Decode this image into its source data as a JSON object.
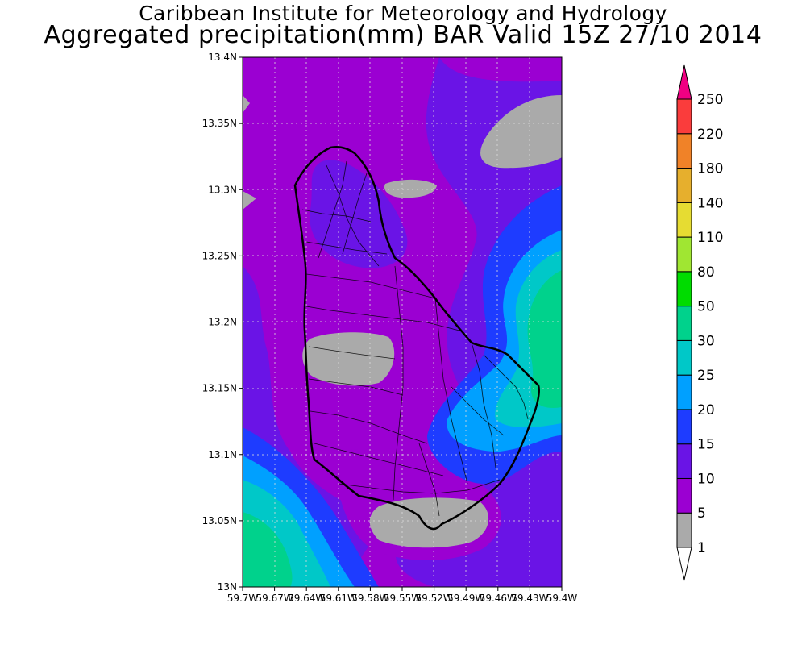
{
  "header": {
    "institute": "Caribbean Institute for Meteorology and Hydrology",
    "product": "Aggregated precipitation(mm) BAR Valid 15Z 27/10 2014"
  },
  "map": {
    "region": "Barbados",
    "lat_range": [
      13.0,
      13.4
    ],
    "lon_range": [
      -59.7,
      -59.4
    ],
    "y_ticks": [
      "13.4N",
      "13.35N",
      "13.3N",
      "13.25N",
      "13.2N",
      "13.15N",
      "13.1N",
      "13.05N",
      "13N"
    ],
    "x_ticks": [
      "59.7W",
      "59.67W",
      "59.64W",
      "59.61W",
      "59.58W",
      "59.55W",
      "59.52W",
      "59.49W",
      "59.46W",
      "59.43W",
      "59.4W"
    ],
    "gridlines": "dotted",
    "colors": {
      "1-5": "#aaaaaa",
      "5-10": "#9b00d2",
      "10-15": "#6a14e6",
      "15-20": "#1e3cff",
      "20-25": "#00a0ff",
      "25-30": "#00c8c8",
      "30-50": "#00d28c",
      "50-80": "#00dc00",
      "80-110": "#a0e632",
      "110-140": "#e6dc32",
      "140-180": "#e6af2d",
      "180-220": "#f08228",
      "220-250": "#fa3c3c",
      ">250": "#f00082"
    }
  },
  "colorbar": {
    "levels": [
      "1",
      "5",
      "10",
      "15",
      "20",
      "25",
      "30",
      "50",
      "80",
      "110",
      "140",
      "180",
      "220",
      "250"
    ],
    "colors": [
      "#aaaaaa",
      "#9b00d2",
      "#6a14e6",
      "#1e3cff",
      "#00a0ff",
      "#00c8c8",
      "#00d28c",
      "#00dc00",
      "#a0e632",
      "#e6dc32",
      "#e6af2d",
      "#f08228",
      "#fa3c3c",
      "#f00082"
    ],
    "below_color": "#ffffff"
  }
}
